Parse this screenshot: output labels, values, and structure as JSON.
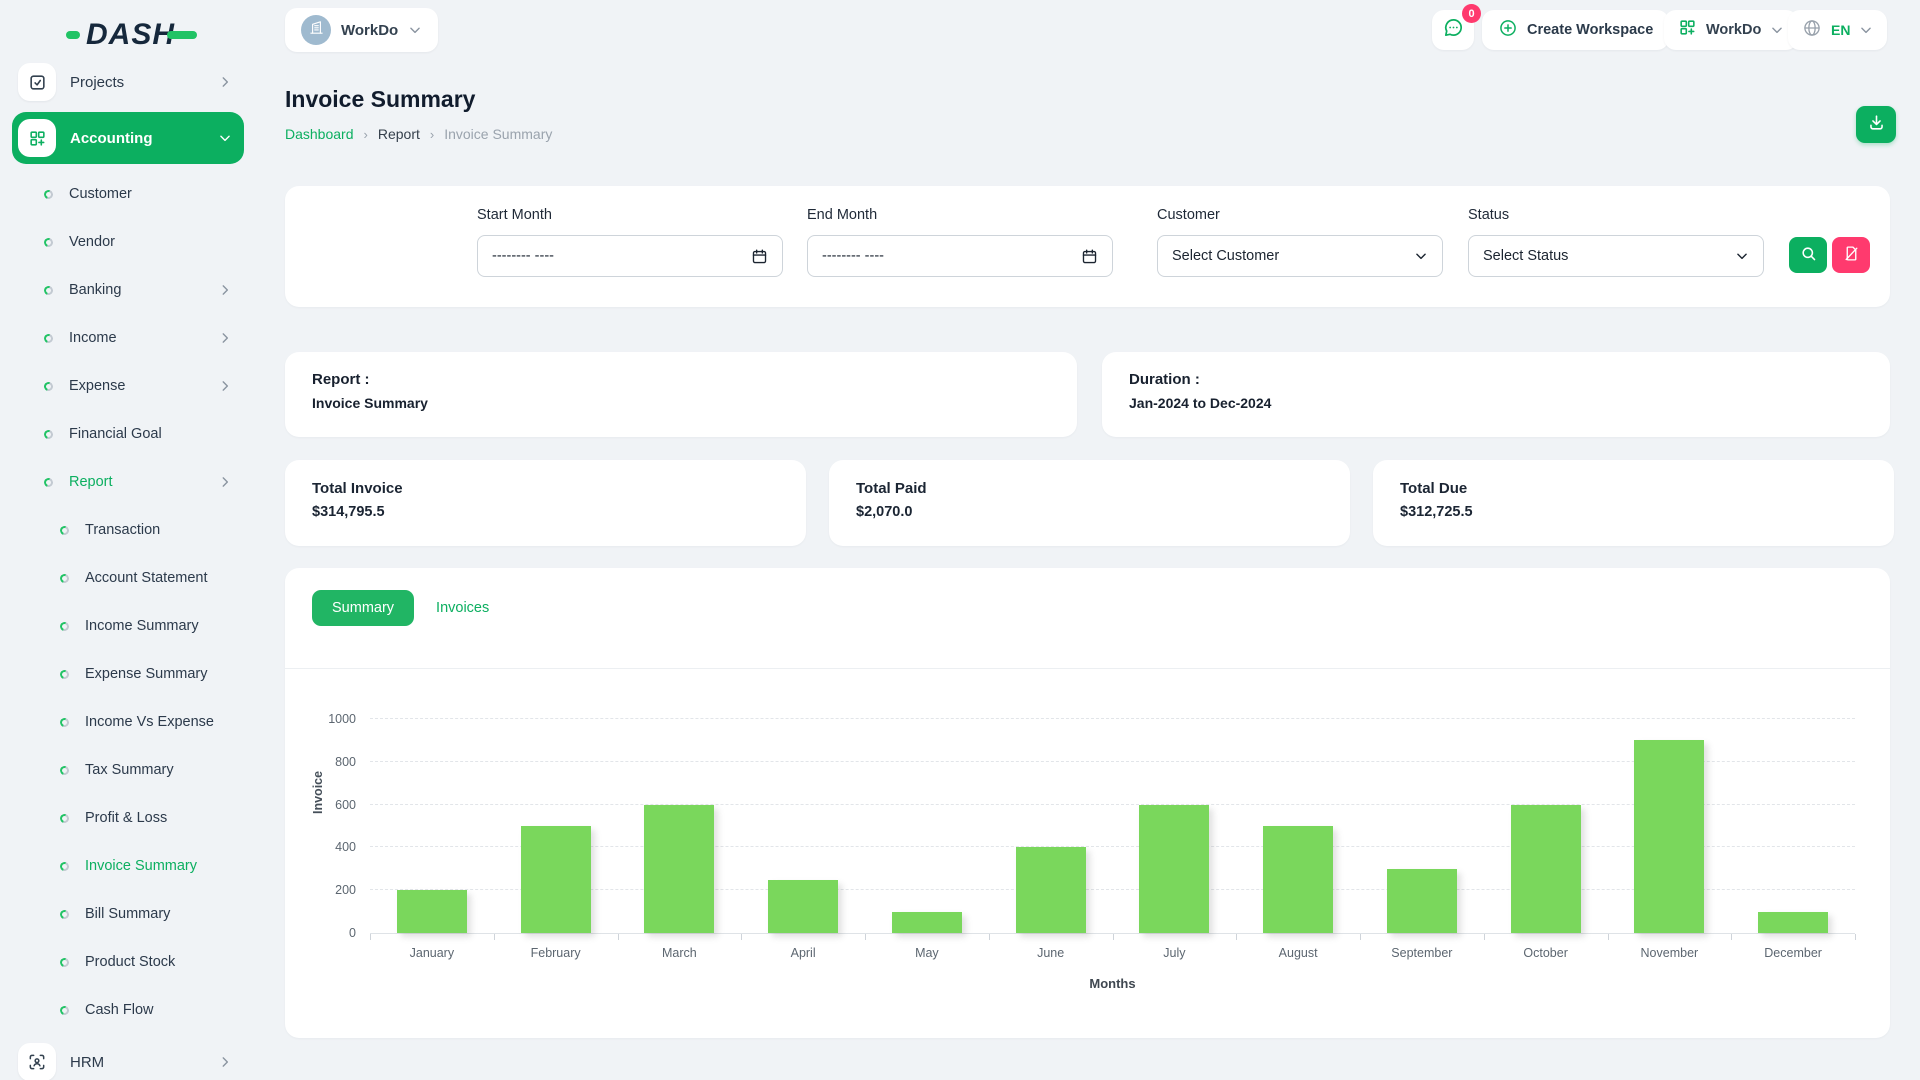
{
  "header": {
    "logo_text": "DASH",
    "workspace_switcher": {
      "label": "WorkDo",
      "icon": "building-icon",
      "chevron": "chevron-down-icon"
    },
    "messages": {
      "icon": "chat-icon",
      "badge_count": "0"
    },
    "create_workspace": {
      "label": "Create Workspace",
      "icon": "plus-circle-icon"
    },
    "workspace_menu": {
      "label": "WorkDo",
      "icon": "grid-plus-icon",
      "chevron": "chevron-down-icon"
    },
    "language": {
      "label": "EN",
      "icon": "globe-icon",
      "chevron": "chevron-down-icon"
    }
  },
  "sidebar": {
    "items": [
      {
        "label": "Projects",
        "type": "top",
        "icon": "checkbox-icon",
        "chevron": "right"
      },
      {
        "label": "Accounting",
        "type": "top-active",
        "icon": "grid-plus-icon",
        "chevron": "down"
      },
      {
        "label": "Customer",
        "type": "sub"
      },
      {
        "label": "Vendor",
        "type": "sub"
      },
      {
        "label": "Banking",
        "type": "sub",
        "chevron": "right"
      },
      {
        "label": "Income",
        "type": "sub",
        "chevron": "right"
      },
      {
        "label": "Expense",
        "type": "sub",
        "chevron": "right"
      },
      {
        "label": "Financial Goal",
        "type": "sub"
      },
      {
        "label": "Report",
        "type": "sub",
        "chevron": "right",
        "active": true
      },
      {
        "label": "Transaction",
        "type": "sub2"
      },
      {
        "label": "Account Statement",
        "type": "sub2"
      },
      {
        "label": "Income Summary",
        "type": "sub2"
      },
      {
        "label": "Expense Summary",
        "type": "sub2"
      },
      {
        "label": "Income Vs Expense",
        "type": "sub2"
      },
      {
        "label": "Tax Summary",
        "type": "sub2"
      },
      {
        "label": "Profit & Loss",
        "type": "sub2"
      },
      {
        "label": "Invoice Summary",
        "type": "sub2",
        "active": true
      },
      {
        "label": "Bill Summary",
        "type": "sub2"
      },
      {
        "label": "Product Stock",
        "type": "sub2"
      },
      {
        "label": "Cash Flow",
        "type": "sub2"
      },
      {
        "label": "HRM",
        "type": "top",
        "icon": "user-focus-icon",
        "chevron": "right"
      }
    ]
  },
  "page": {
    "title": "Invoice Summary",
    "breadcrumb": {
      "separator": "›",
      "items": [
        {
          "label": "Dashboard",
          "state": "link"
        },
        {
          "label": "Report",
          "state": "current"
        },
        {
          "label": "Invoice Summary",
          "state": "muted"
        }
      ]
    },
    "download_button": {
      "icon": "download-icon"
    }
  },
  "filter": {
    "start_month": {
      "label": "Start Month",
      "placeholder": "-------- ----",
      "icon": "calendar-icon"
    },
    "end_month": {
      "label": "End Month",
      "placeholder": "-------- ----",
      "icon": "calendar-icon"
    },
    "customer": {
      "label": "Customer",
      "value": "Select Customer",
      "icon": "chevron-down-icon"
    },
    "status": {
      "label": "Status",
      "value": "Select Status",
      "icon": "chevron-down-icon"
    },
    "search_button": {
      "icon": "search-icon"
    },
    "reset_button": {
      "icon": "reset-icon"
    }
  },
  "report_info": {
    "label": "Report :",
    "value": "Invoice Summary"
  },
  "duration_info": {
    "label": "Duration :",
    "value": "Jan-2024 to Dec-2024"
  },
  "stats": [
    {
      "label": "Total Invoice",
      "value": "$314,795.5"
    },
    {
      "label": "Total Paid",
      "value": "$2,070.0"
    },
    {
      "label": "Total Due",
      "value": "$312,725.5"
    }
  ],
  "tabs": [
    {
      "label": "Summary",
      "active": true
    },
    {
      "label": "Invoices",
      "active": false
    }
  ],
  "chart_data": {
    "type": "bar",
    "categories": [
      "January",
      "February",
      "March",
      "April",
      "May",
      "June",
      "July",
      "August",
      "September",
      "October",
      "November",
      "December"
    ],
    "values": [
      200,
      500,
      600,
      250,
      100,
      400,
      600,
      500,
      300,
      600,
      900,
      100
    ],
    "title": "",
    "xlabel": "Months",
    "ylabel": "Invoice",
    "ylim": [
      0,
      1000
    ],
    "yticks": [
      0,
      200,
      400,
      600,
      800,
      1000
    ],
    "grid": true,
    "legend": "none",
    "bar_color": "#7ad75c"
  },
  "colors": {
    "accent_green": "#0caf60",
    "badge_pink": "#ff3a6e",
    "bar_green": "#7ad75c"
  }
}
